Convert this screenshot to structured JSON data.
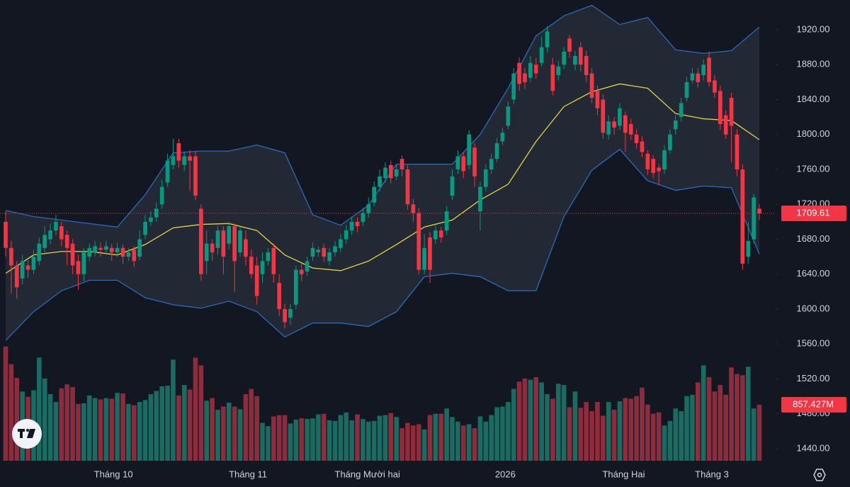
{
  "chart_data": {
    "type": "candlestick",
    "up_color": "#089981",
    "down_color": "#f23645",
    "volume_up_color": "#1a6b62",
    "volume_down_color": "#8c2c3c",
    "band_color": "#2a6bbf",
    "band_fill": "rgba(120,130,150,0.16)",
    "middle_color": "#e3d446",
    "ylim": [
      1426.2,
      1954.1
    ],
    "yticks": [
      {
        "value": 1440,
        "label": "1440.00"
      },
      {
        "value": 1480,
        "label": "1480.00"
      },
      {
        "value": 1520,
        "label": "1520.00"
      },
      {
        "value": 1560,
        "label": "1560.00"
      },
      {
        "value": 1600,
        "label": "1600.00"
      },
      {
        "value": 1640,
        "label": "1640.00"
      },
      {
        "value": 1680,
        "label": "1680.00"
      },
      {
        "value": 1720,
        "label": "1720.00"
      },
      {
        "value": 1760,
        "label": "1760.00"
      },
      {
        "value": 1800,
        "label": "1800.00"
      },
      {
        "value": 1840,
        "label": "1840.00"
      },
      {
        "value": 1880,
        "label": "1880.00"
      },
      {
        "value": 1920,
        "label": "1920.00"
      }
    ],
    "vlim": [
      0,
      7055
    ],
    "xlim": [
      0,
      135
    ],
    "xticks": [
      {
        "value": 19.3,
        "label": "Tháng 10"
      },
      {
        "value": 43.4,
        "label": "Tháng 11"
      },
      {
        "value": 64.8,
        "label": "Tháng Mười hai"
      },
      {
        "value": 89.5,
        "label": "2026"
      },
      {
        "value": 110.7,
        "label": "Tháng Hai"
      },
      {
        "value": 126.5,
        "label": "Tháng 3"
      }
    ],
    "open": [
      1700,
      1670,
      1650,
      1635,
      1650,
      1645,
      1655,
      1670,
      1680,
      1690,
      1695,
      1685,
      1675,
      1655,
      1640,
      1660,
      1665,
      1670,
      1668,
      1670,
      1665,
      1670,
      1660,
      1668,
      1660,
      1685,
      1700,
      1705,
      1720,
      1745,
      1765,
      1790,
      1765,
      1775,
      1775,
      1715,
      1655,
      1675,
      1670,
      1690,
      1675,
      1695,
      1665,
      1680,
      1660,
      1650,
      1640,
      1655,
      1670,
      1630,
      1600,
      1590,
      1605,
      1645,
      1643,
      1660,
      1665,
      1670,
      1655,
      1665,
      1670,
      1680,
      1690,
      1700,
      1700,
      1710,
      1722,
      1740,
      1750,
      1765,
      1752,
      1772,
      1760,
      1720,
      1710,
      1645,
      1682,
      1680,
      1690,
      1690,
      1730,
      1760,
      1775,
      1765,
      1785,
      1712,
      1740,
      1760,
      1772,
      1792,
      1810,
      1840,
      1882,
      1870,
      1865,
      1880,
      1882,
      1900,
      1880,
      1868,
      1880,
      1910,
      1880,
      1900,
      1890,
      1870,
      1850,
      1840,
      1800,
      1815,
      1810,
      1822,
      1812,
      1800,
      1792,
      1778,
      1772,
      1762,
      1760,
      1782,
      1806,
      1820,
      1842,
      1862,
      1870,
      1868,
      1888,
      1862,
      1850,
      1822,
      1842,
      1800,
      1760,
      1660,
      1680,
      1715
    ],
    "high": [
      1712,
      1678,
      1655,
      1662,
      1656,
      1668,
      1682,
      1695,
      1698,
      1708,
      1700,
      1690,
      1680,
      1662,
      1670,
      1675,
      1678,
      1676,
      1678,
      1675,
      1676,
      1674,
      1670,
      1672,
      1690,
      1708,
      1712,
      1722,
      1748,
      1778,
      1795,
      1795,
      1780,
      1782,
      1780,
      1720,
      1690,
      1680,
      1695,
      1695,
      1700,
      1698,
      1695,
      1690,
      1668,
      1660,
      1665,
      1670,
      1675,
      1640,
      1606,
      1606,
      1650,
      1652,
      1660,
      1676,
      1672,
      1675,
      1670,
      1678,
      1686,
      1696,
      1706,
      1705,
      1716,
      1728,
      1746,
      1760,
      1768,
      1770,
      1766,
      1776,
      1765,
      1726,
      1716,
      1686,
      1688,
      1696,
      1694,
      1718,
      1760,
      1782,
      1780,
      1805,
      1790,
      1746,
      1766,
      1778,
      1796,
      1808,
      1838,
      1876,
      1888,
      1876,
      1890,
      1888,
      1912,
      1924,
      1888,
      1884,
      1900,
      1914,
      1896,
      1906,
      1896,
      1876,
      1856,
      1846,
      1822,
      1820,
      1836,
      1826,
      1818,
      1806,
      1798,
      1782,
      1776,
      1766,
      1788,
      1806,
      1822,
      1842,
      1866,
      1876,
      1876,
      1886,
      1895,
      1868,
      1856,
      1828,
      1848,
      1806,
      1766,
      1700,
      1732,
      1720
    ],
    "low": [
      1660,
      1618,
      1612,
      1628,
      1636,
      1640,
      1650,
      1665,
      1674,
      1685,
      1672,
      1650,
      1640,
      1622,
      1632,
      1655,
      1660,
      1660,
      1662,
      1655,
      1660,
      1652,
      1655,
      1648,
      1656,
      1680,
      1695,
      1700,
      1715,
      1740,
      1760,
      1762,
      1758,
      1735,
      1725,
      1632,
      1640,
      1655,
      1662,
      1640,
      1668,
      1620,
      1660,
      1650,
      1635,
      1605,
      1630,
      1650,
      1630,
      1592,
      1578,
      1582,
      1600,
      1632,
      1638,
      1655,
      1660,
      1654,
      1650,
      1660,
      1665,
      1675,
      1685,
      1688,
      1695,
      1705,
      1718,
      1735,
      1745,
      1744,
      1748,
      1752,
      1714,
      1700,
      1640,
      1640,
      1630,
      1675,
      1676,
      1685,
      1725,
      1755,
      1750,
      1760,
      1740,
      1690,
      1735,
      1755,
      1768,
      1788,
      1806,
      1835,
      1850,
      1852,
      1860,
      1864,
      1878,
      1894,
      1845,
      1862,
      1875,
      1888,
      1874,
      1872,
      1860,
      1836,
      1822,
      1795,
      1794,
      1800,
      1805,
      1780,
      1794,
      1784,
      1774,
      1754,
      1750,
      1742,
      1755,
      1778,
      1800,
      1815,
      1838,
      1858,
      1854,
      1862,
      1855,
      1842,
      1805,
      1795,
      1768,
      1752,
      1645,
      1652,
      1675,
      1702
    ],
    "close": [
      1670,
      1650,
      1625,
      1655,
      1645,
      1660,
      1675,
      1685,
      1690,
      1700,
      1680,
      1670,
      1650,
      1640,
      1665,
      1670,
      1672,
      1668,
      1672,
      1665,
      1670,
      1660,
      1665,
      1655,
      1680,
      1700,
      1705,
      1715,
      1740,
      1770,
      1775,
      1770,
      1775,
      1770,
      1730,
      1640,
      1675,
      1665,
      1690,
      1660,
      1695,
      1655,
      1690,
      1660,
      1640,
      1615,
      1655,
      1665,
      1640,
      1600,
      1585,
      1600,
      1645,
      1640,
      1655,
      1670,
      1668,
      1660,
      1665,
      1672,
      1680,
      1690,
      1700,
      1695,
      1710,
      1720,
      1740,
      1752,
      1762,
      1750,
      1760,
      1760,
      1720,
      1710,
      1645,
      1670,
      1645,
      1690,
      1682,
      1712,
      1752,
      1775,
      1758,
      1800,
      1752,
      1740,
      1760,
      1772,
      1790,
      1802,
      1832,
      1870,
      1858,
      1860,
      1882,
      1870,
      1900,
      1918,
      1850,
      1878,
      1895,
      1895,
      1890,
      1880,
      1868,
      1842,
      1830,
      1802,
      1815,
      1808,
      1830,
      1802,
      1800,
      1790,
      1780,
      1760,
      1756,
      1758,
      1782,
      1800,
      1816,
      1836,
      1860,
      1870,
      1860,
      1880,
      1860,
      1848,
      1812,
      1800,
      1810,
      1760,
      1652,
      1678,
      1728,
      1709.61
    ],
    "volume": [
      1750,
      1480,
      1270,
      1060,
      980,
      1080,
      1580,
      1260,
      1020,
      900,
      1110,
      1170,
      1130,
      870,
      880,
      1000,
      960,
      940,
      960,
      950,
      1040,
      1030,
      870,
      850,
      900,
      930,
      1020,
      1070,
      1140,
      1150,
      1550,
      1000,
      1160,
      1090,
      1580,
      1460,
      920,
      960,
      780,
      830,
      890,
      830,
      790,
      1020,
      1100,
      990,
      580,
      530,
      680,
      700,
      700,
      570,
      630,
      650,
      640,
      650,
      710,
      720,
      620,
      610,
      700,
      740,
      620,
      710,
      640,
      600,
      610,
      690,
      700,
      730,
      670,
      500,
      580,
      540,
      560,
      480,
      700,
      720,
      720,
      800,
      670,
      600,
      540,
      560,
      500,
      680,
      600,
      700,
      820,
      830,
      900,
      1100,
      1210,
      1260,
      1240,
      1280,
      1200,
      1020,
      950,
      1180,
      1160,
      820,
      1060,
      810,
      900,
      760,
      900,
      690,
      900,
      780,
      910,
      960,
      950,
      990,
      1120,
      860,
      720,
      740,
      540,
      610,
      800,
      760,
      990,
      1010,
      1200,
      1460,
      1280,
      1060,
      1160,
      1010,
      1430,
      1330,
      1310,
      1440,
      800,
      857.427
    ],
    "bands": {
      "x": [
        0,
        5,
        10,
        15,
        20,
        25,
        30,
        35,
        40,
        45,
        50,
        55,
        60,
        65,
        70,
        75,
        80,
        85,
        90,
        95,
        100,
        105,
        110,
        115,
        120,
        125,
        130,
        135
      ],
      "upper": [
        1713,
        1706,
        1702,
        1698,
        1694,
        1731,
        1779,
        1781,
        1781,
        1788,
        1779,
        1708,
        1696,
        1719,
        1766,
        1766,
        1766,
        1800,
        1853,
        1913,
        1936,
        1948,
        1926,
        1934,
        1897,
        1893,
        1896,
        1923
      ],
      "middle": [
        1641,
        1662,
        1666,
        1666,
        1662,
        1674,
        1693,
        1697,
        1698,
        1690,
        1662,
        1647,
        1644,
        1655,
        1674,
        1694,
        1702,
        1725,
        1743,
        1792,
        1832,
        1849,
        1858,
        1853,
        1824,
        1818,
        1816,
        1794
      ],
      "lower": [
        1564,
        1597,
        1621,
        1633,
        1633,
        1613,
        1605,
        1601,
        1609,
        1597,
        1568,
        1584,
        1584,
        1580,
        1597,
        1637,
        1641,
        1637,
        1621,
        1621,
        1706,
        1759,
        1783,
        1747,
        1736,
        1741,
        1739,
        1663
      ]
    },
    "last_price": 1709.61,
    "volume_label": {
      "value": 857.427,
      "label": "857.427M"
    }
  }
}
